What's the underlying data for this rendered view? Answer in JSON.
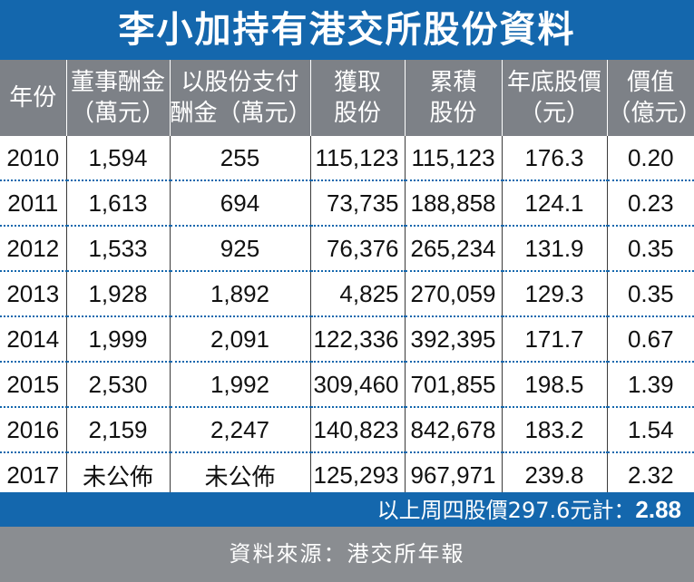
{
  "title": "李小加持有港交所股份資料",
  "headers": [
    "年份",
    "董事酬金\n（萬元）",
    "以股份支付\n酬金（萬元）",
    "獲取\n股份",
    "累積\n股份",
    "年底股價\n（元）",
    "價值\n（億元）"
  ],
  "rows": [
    [
      "2010",
      "1,594",
      "255",
      "115,123",
      "115,123",
      "176.3",
      "0.20"
    ],
    [
      "2011",
      "1,613",
      "694",
      "73,735",
      "188,858",
      "124.1",
      "0.23"
    ],
    [
      "2012",
      "1,533",
      "925",
      "76,376",
      "265,234",
      "131.9",
      "0.35"
    ],
    [
      "2013",
      "1,928",
      "1,892",
      "4,825",
      "270,059",
      "129.3",
      "0.35"
    ],
    [
      "2014",
      "1,999",
      "2,091",
      "122,336",
      "392,395",
      "171.7",
      "0.67"
    ],
    [
      "2015",
      "2,530",
      "1,992",
      "309,460",
      "701,855",
      "198.5",
      "1.39"
    ],
    [
      "2016",
      "2,159",
      "2,247",
      "140,823",
      "842,678",
      "183.2",
      "1.54"
    ],
    [
      "2017",
      "未公佈",
      "未公佈",
      "125,293",
      "967,971",
      "239.8",
      "2.32"
    ]
  ],
  "footer": {
    "text": "以上周四股價297.6元計：",
    "value": "2.88"
  },
  "source": "資料來源：港交所年報",
  "colors": {
    "title_bg": "#1467ad",
    "header_bg": "#7d8187",
    "source_bg": "#8a8d91",
    "divider": "#1467ad"
  }
}
